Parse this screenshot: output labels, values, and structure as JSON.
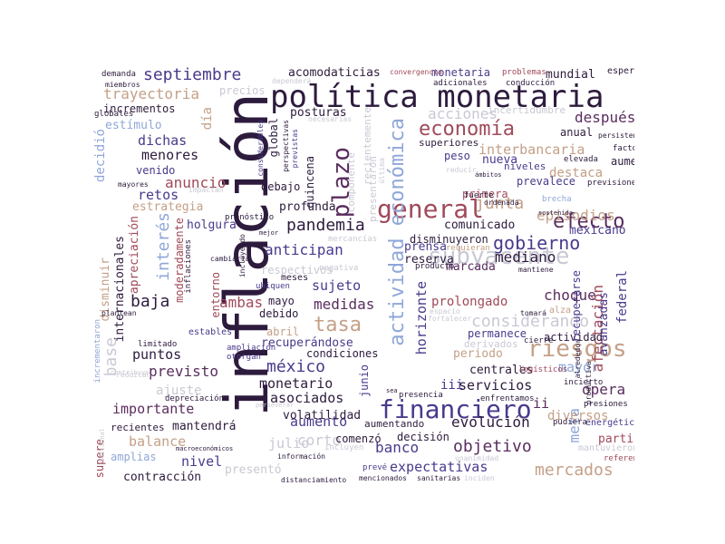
{
  "colors": {
    "dark": "#2d1b3d",
    "plum": "#5a2d5e",
    "indigo": "#4a3a8c",
    "blue": "#6a7fbf",
    "sky": "#8fa7d8",
    "tan": "#c4a088",
    "rose": "#a04a5a",
    "grey": "#c9c9d4",
    "mauve": "#8a6a8a"
  },
  "words": {
    "inflacion": "inflación",
    "politica_monetaria": "política monetaria",
    "general": "general",
    "financiero": "financiero",
    "riesgos": "riesgos",
    "actividad_economica": "actividad económica",
    "plazo": "plazo",
    "subyacente": "subyacente",
    "economia": "economía",
    "septiembre": "septiembre",
    "efecto": "efecto",
    "pandemia": "pandemia",
    "gobierno": "gobierno",
    "tasa": "tasa",
    "mercados": "mercados",
    "objetivo": "objetivo",
    "mexico": "méxico",
    "considerando": "considerando",
    "interes": "interés",
    "trayectoria": "trayectoria",
    "acciones": "acciones",
    "junta": "junta",
    "anuncio": "anuncio",
    "despues": "después",
    "menores": "menores",
    "dichas": "dichas",
    "episodios": "episodios",
    "interbancaria": "interbancaria",
    "anticipan": "anticipan",
    "baja": "baja",
    "ambas": "ambas",
    "medidas": "medidas",
    "choque": "choque",
    "sujeto": "sujeto",
    "mediano": "mediano",
    "prolongado": "prolongado",
    "horizonte": "horizonte",
    "base": "base",
    "previsto": "previsto",
    "puntos": "puntos",
    "importante": "importante",
    "asociados": "asociados",
    "monetario": "monetario",
    "aumento": "aumento",
    "evolucion": "evolución",
    "banco": "banco",
    "expectativas": "expectativas",
    "balance": "balance",
    "nivel": "nivel",
    "corto": "corto",
    "julio": "julio",
    "mayor": "mayor",
    "opera": "opera",
    "servicios": "servicios",
    "iii": "iii",
    "ii": "ii",
    "meta": "meta",
    "afectacion": "afectación",
    "acomodaticias": "acomodaticias",
    "monetaria": "monetaria",
    "mundial": "mundial",
    "incrementos": "incrementos",
    "estimulo": "estímulo",
    "posturas": "posturas",
    "dia": "día",
    "global": "global",
    "decidio": "decidió",
    "retos": "retos",
    "holgura": "holgura",
    "estrategia": "estrategia",
    "volatilidad": "volatilidad",
    "mantendra": "mantendrá",
    "contraccion": "contracción",
    "presento": "presentó",
    "diversos": "diversos",
    "partir": "partir",
    "avanzadas": "avanzadas",
    "federal": "federal",
    "comunicado": "comunicado",
    "disminuyeron": "disminuyeron",
    "prensa": "prensa",
    "reserva": "reserva",
    "marcada": "marcada",
    "mexicano": "mexicano",
    "debajo": "debajo",
    "profunda": "profunda",
    "quincena": "quincena",
    "nueva": "nueva",
    "peso": "peso",
    "primera": "primera",
    "destaca": "destaca",
    "prevalece": "prevalece",
    "aumento2": "aumentó",
    "anual": "anual",
    "superiores": "superiores",
    "niveles": "niveles",
    "internacionales": "internacionales",
    "apreciacion": "apreciación",
    "moderadamente": "moderadamente",
    "recuperandose": "recuperándose",
    "condiciones": "condiciones",
    "periodo": "periodo",
    "centrales": "centrales",
    "permanece": "permanece",
    "actividad": "actividad",
    "ajuste": "ajuste",
    "ambas_v": "disminuir",
    "entorno": "entorno",
    "mayo": "mayo",
    "debido": "debido",
    "abril": "abril",
    "respectivos": "respectivos",
    "amplias": "amplias",
    "recientes": "recientes",
    "supere": "supere",
    "junio": "junio",
    "decision": "decisión",
    "comenzo": "comenzó",
    "aumentando": "aumentando",
    "recuperarse": "recuperarse",
    "incertidumbre": "incertidumbre",
    "precios": "precios",
    "recientemente": "recientemente",
    "venido": "venido",
    "demanda": "demanda",
    "convergencia": "convergencia",
    "problemas": "problemas",
    "esperada": "esperada",
    "miembros": "miembros",
    "adicionales": "adicionales",
    "conduccion": "conducción",
    "globales": "globales",
    "persistencia": "persistencia",
    "elevada": "elevada",
    "factores": "factores",
    "reducir": "reducir",
    "ambitos": "ámbitos",
    "previsiones": "previsiones",
    "presentaron": "presentaron",
    "componente": "componente",
    "fuerte": "fuerte",
    "ordenada": "ordenada",
    "brecha": "brecha",
    "pronostico": "pronóstico",
    "mercancias": "mercancías",
    "requieran": "requieran",
    "producto": "producto",
    "mantiene": "mantiene",
    "negativa": "negativa",
    "cambiaria": "cambiaria",
    "ubiquen": "ubiquen",
    "meses": "meses",
    "espacio": "espacio",
    "fortalecer": "fortalecer",
    "derivados": "derivados",
    "alza": "alza",
    "limitado": "limitado",
    "estables": "estables",
    "ampliacion": "ampliación",
    "otorgan": "otorgan",
    "depreciacion": "depreciación",
    "inflaciones": "inflaciones",
    "incrementaron": "incrementaron",
    "presencia": "presencia",
    "enfrentamos": "enfrentamos",
    "logisticos": "logísticos",
    "incierto": "incierto",
    "presiones": "presiones",
    "energeticos": "energéticos",
    "pudiera": "pudiera",
    "mantuvieron": "mantuvieron",
    "referencia": "referencia",
    "informacion": "información",
    "unanimidad": "unanimidad",
    "preve": "prevé",
    "mencionados": "mencionados",
    "sanitarias": "sanitarias",
    "inciden": "inciden",
    "distanciamiento": "distanciamiento",
    "macroeconomicos": "macroeconómicos",
    "adicional": "adicional",
    "reduzcan": "reduzcan",
    "plantean": "plantean",
    "cierre": "cierre",
    "tomara": "tomará",
    "productiva": "productiva",
    "alrededor": "alrededor",
    "necesarias": "necesarias",
    "considerables": "considerables",
    "previstas": "previstas",
    "perspectivas": "perspectivas",
    "impactan": "impactan",
    "mayores": "mayores",
    "ultima": "última",
    "sostenida": "sostenida",
    "mejor": "mejor",
    "incluyendo": "incluyendo",
    "sea": "sea",
    "incluyen": "incluyen",
    "contribuya": "contribuya",
    "perseverar": "perseverar",
    "dependera": "dependerá"
  }
}
